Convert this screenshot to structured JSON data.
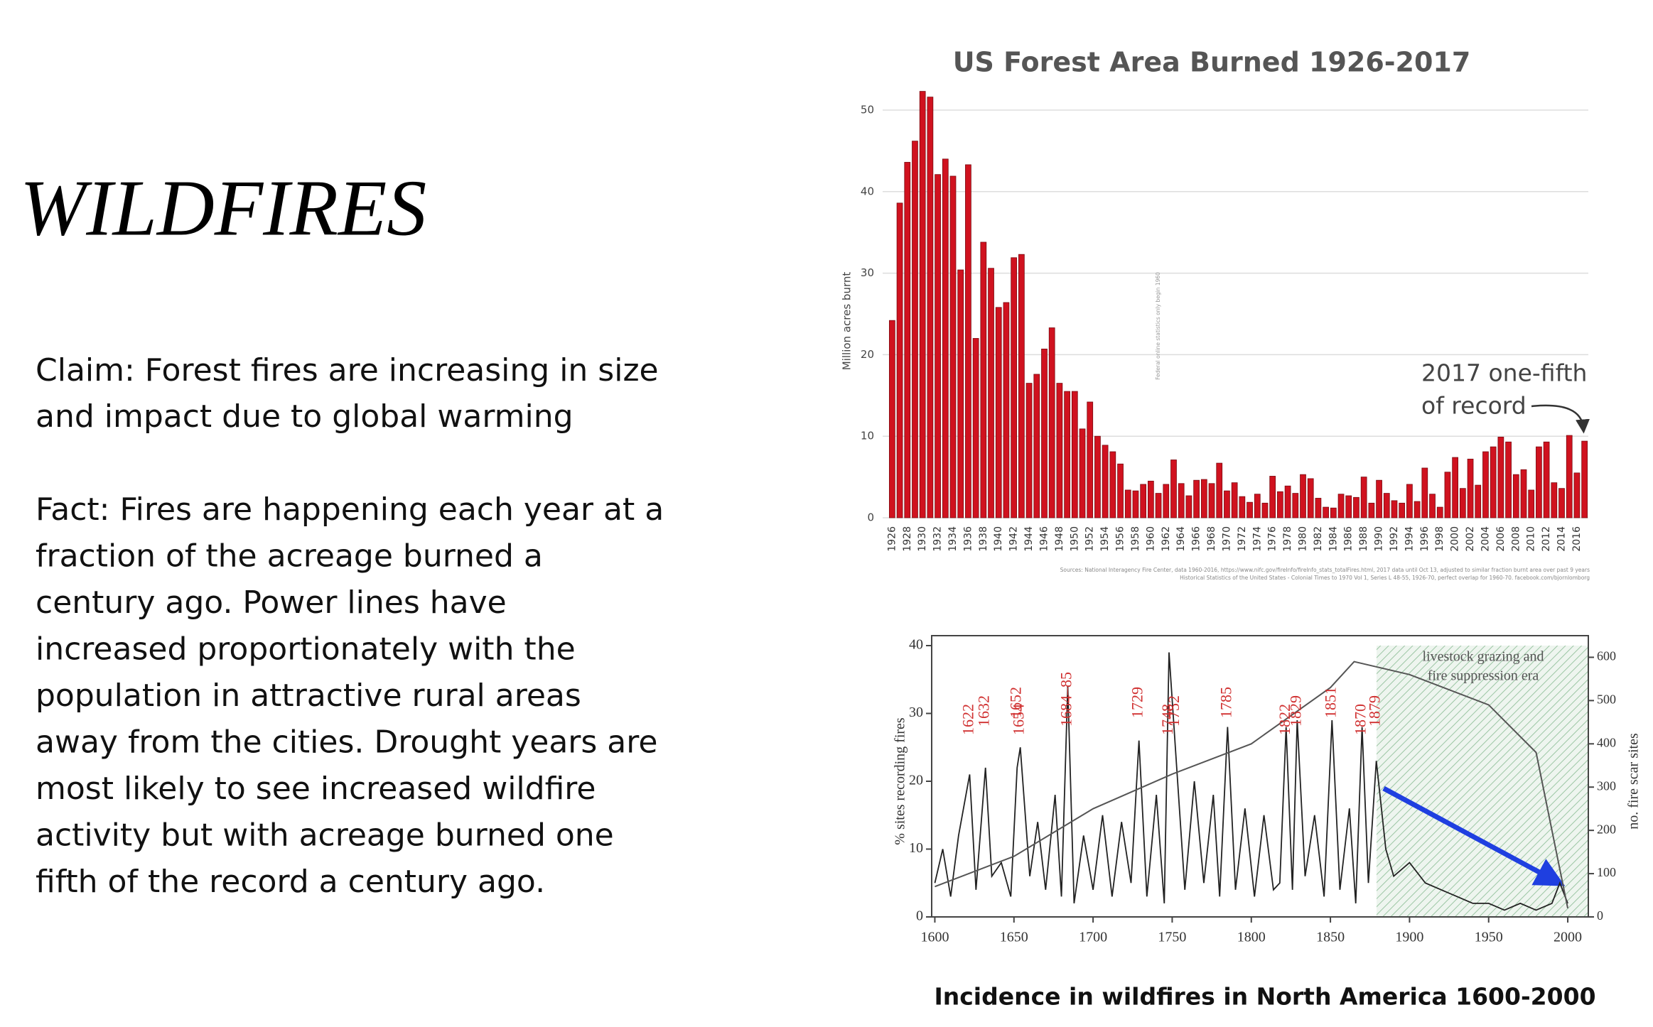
{
  "title": "WILDFIRES",
  "claim": [
    "Claim: Forest fires are increasing in size",
    "and impact due to global warming"
  ],
  "fact": [
    "Fact: Fires are happening each year at a",
    "fraction of the acreage burned a",
    "century ago.  Power lines have",
    "increased proportionately with the",
    "population in attractive rural areas",
    "away from the cities. Drought years are",
    "most likely to see increased wildfire",
    "activity but with acreage burned one",
    "fifth of the record a century ago."
  ],
  "chart_data": [
    {
      "type": "bar",
      "title": "US Forest Area Burned 1926-2017",
      "y_label": "Million acres burnt",
      "categories": [
        "1926",
        null,
        "1928",
        null,
        "1930",
        null,
        "1932",
        null,
        "1934",
        null,
        "1936",
        null,
        "1938",
        null,
        "1940",
        null,
        "1942",
        null,
        "1944",
        null,
        "1946",
        null,
        "1948",
        null,
        "1950",
        null,
        "1952",
        null,
        "1954",
        null,
        "1956",
        null,
        "1958",
        null,
        "1960",
        null,
        "1962",
        null,
        "1964",
        null,
        "1966",
        null,
        "1968",
        null,
        "1970",
        null,
        "1972",
        null,
        "1974",
        null,
        "1976",
        null,
        "1978",
        null,
        "1980",
        null,
        "1982",
        null,
        "1984",
        null,
        "1986",
        null,
        "1988",
        null,
        "1990",
        null,
        "1992",
        null,
        "1994",
        null,
        "1996",
        null,
        "1998",
        null,
        "2000",
        null,
        "2002",
        null,
        "2004",
        null,
        "2006",
        null,
        "2008",
        null,
        "2010",
        null,
        "2012",
        null,
        "2014",
        null,
        "2016",
        null
      ],
      "values": [
        24.2,
        38.6,
        43.6,
        46.2,
        52.3,
        51.6,
        42.1,
        44.0,
        41.9,
        30.4,
        43.3,
        22.0,
        33.8,
        30.6,
        25.8,
        26.4,
        31.9,
        32.3,
        16.5,
        17.6,
        20.7,
        23.3,
        16.5,
        15.5,
        15.5,
        10.9,
        14.2,
        10.0,
        8.9,
        8.1,
        6.6,
        3.4,
        3.3,
        4.1,
        4.5,
        3.0,
        4.1,
        7.1,
        4.2,
        2.7,
        4.6,
        4.7,
        4.2,
        6.7,
        3.3,
        4.3,
        2.6,
        1.9,
        2.9,
        1.8,
        5.1,
        3.2,
        3.9,
        3.0,
        5.3,
        4.8,
        2.4,
        1.3,
        1.2,
        2.9,
        2.7,
        2.5,
        5.0,
        1.8,
        4.6,
        3.0,
        2.1,
        1.8,
        4.1,
        2.0,
        6.1,
        2.9,
        1.3,
        5.6,
        7.4,
        3.6,
        7.2,
        4.0,
        8.1,
        8.7,
        9.9,
        9.3,
        5.3,
        5.9,
        3.4,
        8.7,
        9.3,
        4.3,
        3.6,
        10.1,
        5.5,
        9.4
      ],
      "color": "#d0121f",
      "ylim": [
        0,
        50
      ],
      "yticks": [
        0,
        10,
        20,
        30,
        40,
        50
      ],
      "grid": true,
      "annotation": [
        "2017 one-fifth",
        "of record"
      ],
      "note": "Federal online statistics only begin 1960",
      "sources": [
        "Sources: National Interagency Fire Center, data 1960-2016, https://www.nifc.gov/fireInfo/fireInfo_stats_totalFires.html, 2017 data until Oct 13, adjusted to similar fraction burnt area over past 9 years",
        "Historical Statistics of the United States - Colonial Times to 1970 Vol 1, Series L 48-55, 1926-70, perfect overlap for 1960-70. facebook.com/bjornlomborg"
      ]
    },
    {
      "type": "line",
      "title": "Incidence in wildfires in North America 1600-2000",
      "y_label": "% sites recording fires",
      "y2_label": "no. fire scar sites",
      "era_label": [
        "livestock grazing and",
        "fire suppression era"
      ],
      "annotations": [
        "1622",
        "1632",
        "1652",
        "1654",
        "1684–85",
        "1729",
        "1748",
        "1752",
        "1785",
        "1822",
        "1829",
        "1851",
        "1870",
        "1879"
      ],
      "xlim": [
        1598,
        2013
      ],
      "xticks": [
        1600,
        1650,
        1700,
        1750,
        1800,
        1850,
        1900,
        1950,
        2000
      ],
      "ylim": [
        0,
        40
      ],
      "yticks": [
        0,
        10,
        20,
        30,
        40
      ],
      "y2lim": [
        0,
        650
      ],
      "y2ticks": [
        0,
        100,
        200,
        300,
        400,
        500,
        600
      ],
      "series": [
        {
          "name": "% sites recording fires",
          "color": "#222222",
          "x": [
            1600,
            1605,
            1610,
            1615,
            1622,
            1626,
            1632,
            1636,
            1642,
            1648,
            1652,
            1654,
            1660,
            1665,
            1670,
            1676,
            1680,
            1684,
            1688,
            1694,
            1700,
            1706,
            1712,
            1718,
            1724,
            1729,
            1734,
            1740,
            1745,
            1748,
            1752,
            1758,
            1764,
            1770,
            1776,
            1780,
            1785,
            1790,
            1796,
            1802,
            1808,
            1814,
            1818,
            1822,
            1826,
            1829,
            1834,
            1840,
            1846,
            1851,
            1856,
            1862,
            1866,
            1870,
            1874,
            1879,
            1885,
            1890,
            1900,
            1910,
            1920,
            1930,
            1940,
            1950,
            1960,
            1970,
            1980,
            1990,
            1995,
            2000
          ],
          "values": [
            5,
            10,
            3,
            12,
            21,
            4,
            22,
            6,
            8,
            3,
            22,
            25,
            6,
            14,
            4,
            18,
            3,
            34,
            2,
            12,
            4,
            15,
            3,
            14,
            5,
            26,
            3,
            18,
            2,
            39,
            25,
            4,
            20,
            5,
            18,
            3,
            28,
            4,
            16,
            3,
            15,
            4,
            5,
            28,
            4,
            29,
            6,
            15,
            3,
            29,
            4,
            16,
            2,
            28,
            5,
            23,
            10,
            6,
            8,
            5,
            4,
            3,
            2,
            2,
            1,
            2,
            1,
            2,
            5,
            2
          ]
        },
        {
          "name": "no. fire scar sites",
          "color": "#555555",
          "axis": "y2",
          "x": [
            1600,
            1650,
            1700,
            1750,
            1800,
            1850,
            1865,
            1900,
            1950,
            1980,
            1990,
            2000
          ],
          "values": [
            70,
            140,
            250,
            330,
            400,
            530,
            590,
            560,
            490,
            380,
            200,
            20
          ]
        }
      ]
    }
  ]
}
